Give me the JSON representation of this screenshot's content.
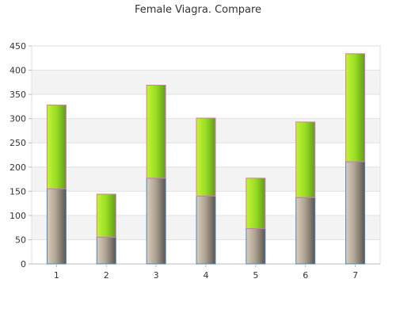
{
  "chart_data": {
    "type": "bar",
    "stacked": true,
    "title": "Female Viagra. Compare",
    "xlabel": "",
    "ylabel": "",
    "categories": [
      "1",
      "2",
      "3",
      "4",
      "5",
      "6",
      "7"
    ],
    "series": [
      {
        "values": [
          155,
          55,
          177,
          140,
          73,
          137,
          211
        ],
        "color": "#7d7266"
      },
      {
        "values": [
          173,
          89,
          192,
          161,
          104,
          156,
          223
        ],
        "color": "#8fd61e"
      }
    ],
    "ylim": [
      0,
      450
    ],
    "yticks": [
      0,
      50,
      100,
      150,
      200,
      250,
      300,
      350,
      400,
      450
    ],
    "grid": true,
    "legend": "none"
  }
}
